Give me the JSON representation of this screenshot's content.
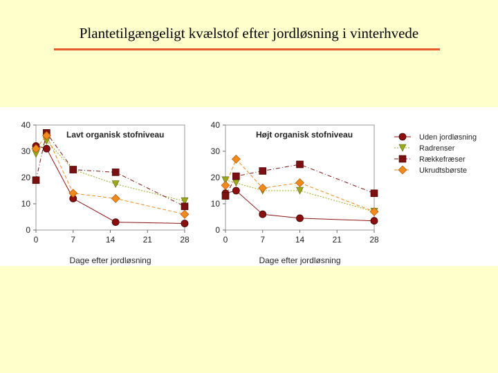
{
  "slide": {
    "title": "Plantetilgængeligt kvælstof efter jordløsning i vinterhvede",
    "accent_color": "#e85a2a",
    "background_color": "#ffffcc"
  },
  "chart_data": {
    "type": "line",
    "legend_position": "right",
    "legend": [
      {
        "name": "Uden jordløsning",
        "color": "#8b0f0f",
        "marker": "circle",
        "dash": "0"
      },
      {
        "name": "Radrenser",
        "color": "#9aa81a",
        "marker": "triangle-down",
        "dash": "2 2"
      },
      {
        "name": "Rækkefræser",
        "color": "#7a1010",
        "marker": "square",
        "dash": "6 3 1 3"
      },
      {
        "name": "Ukrudtsbørste",
        "color": "#f08a1c",
        "marker": "diamond",
        "dash": "5 3"
      }
    ],
    "panels": [
      {
        "title": "Lavt organisk stofniveau",
        "xlabel": "Dage efter jordløsning",
        "ylabel": "",
        "x_ticks": [
          0,
          7,
          14,
          21,
          28
        ],
        "y_ticks": [
          0,
          10,
          20,
          30,
          40
        ],
        "xlim": [
          0,
          28
        ],
        "ylim": [
          0,
          40
        ],
        "series": [
          {
            "name": "Uden jordløsning",
            "x": [
              0,
              2,
              7,
              15,
              28
            ],
            "y": [
              32,
              31,
              12,
              3,
              2.5
            ]
          },
          {
            "name": "Radrenser",
            "x": [
              0,
              2,
              7,
              15,
              28
            ],
            "y": [
              29,
              34,
              23,
              17.5,
              11
            ]
          },
          {
            "name": "Rækkefræser",
            "x": [
              0,
              2,
              7,
              15,
              28
            ],
            "y": [
              19,
              37,
              23,
              22,
              9
            ]
          },
          {
            "name": "Ukrudtsbørste",
            "x": [
              0,
              2,
              7,
              15,
              28
            ],
            "y": [
              31,
              36,
              14,
              12,
              6
            ]
          }
        ]
      },
      {
        "title": "Højt organisk stofniveau",
        "xlabel": "Dage efter jordløsning",
        "ylabel": "",
        "x_ticks": [
          0,
          7,
          14,
          21,
          28
        ],
        "y_ticks": [
          0,
          10,
          20,
          30,
          40
        ],
        "xlim": [
          0,
          28
        ],
        "ylim": [
          0,
          40
        ],
        "series": [
          {
            "name": "Uden jordløsning",
            "x": [
              0,
              2,
              7,
              14,
              28
            ],
            "y": [
              14,
              15,
              6,
              4.5,
              3.5
            ]
          },
          {
            "name": "Radrenser",
            "x": [
              0,
              2,
              7,
              14,
              28
            ],
            "y": [
              19,
              18,
              15,
              15,
              7
            ]
          },
          {
            "name": "Rækkefræser",
            "x": [
              0,
              2,
              7,
              14,
              28
            ],
            "y": [
              13,
              20.5,
              22.5,
              25,
              14
            ]
          },
          {
            "name": "Ukrudtsbørste",
            "x": [
              0,
              2,
              7,
              14,
              28
            ],
            "y": [
              17,
              27,
              16,
              18,
              7
            ]
          }
        ]
      }
    ]
  }
}
